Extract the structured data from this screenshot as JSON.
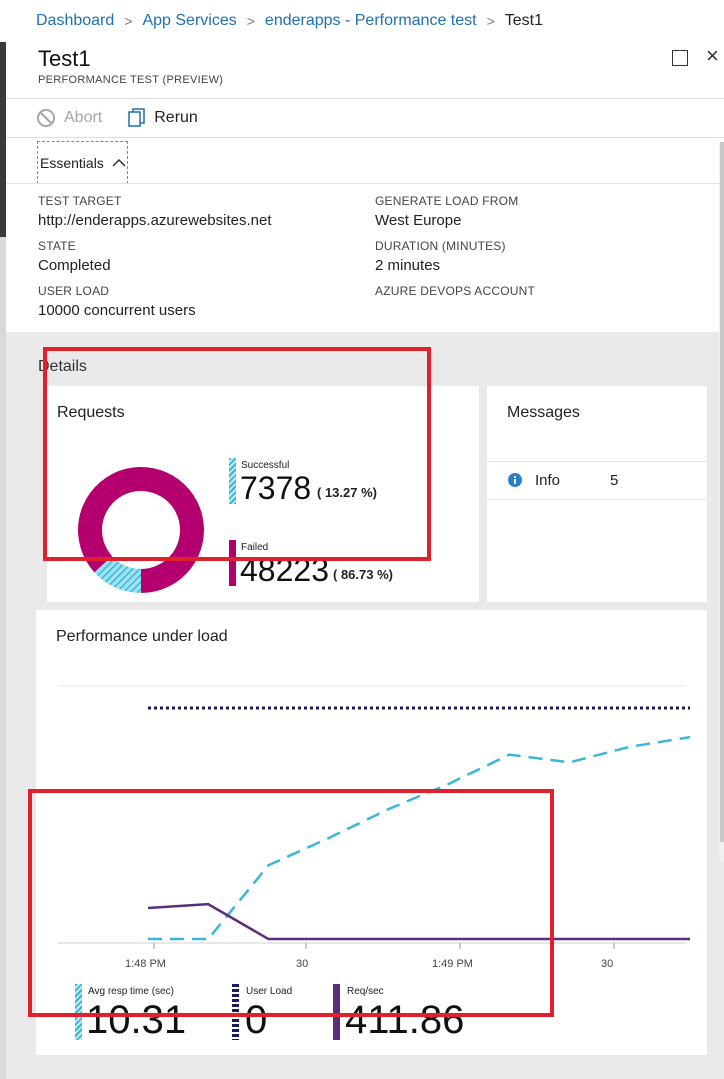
{
  "breadcrumb": {
    "items": [
      "Dashboard",
      "App Services",
      "enderapps - Performance test"
    ],
    "current": "Test1",
    "separator": ">"
  },
  "blade": {
    "title": "Test1",
    "subtitle": "PERFORMANCE TEST (PREVIEW)",
    "close_glyph": "×"
  },
  "toolbar": {
    "abort_label": "Abort",
    "rerun_label": "Rerun"
  },
  "essentials": {
    "toggle_label": "Essentials",
    "left": [
      {
        "label": "TEST TARGET",
        "value": "http://enderapps.azurewebsites.net"
      },
      {
        "label": "STATE",
        "value": "Completed"
      },
      {
        "label": "USER LOAD",
        "value": "10000 concurrent users"
      }
    ],
    "right": [
      {
        "label": "GENERATE LOAD FROM",
        "value": "West Europe"
      },
      {
        "label": "DURATION (MINUTES)",
        "value": "2 minutes"
      },
      {
        "label": "AZURE DEVOPS ACCOUNT",
        "value": ""
      }
    ]
  },
  "details": {
    "heading": "Details",
    "requests": {
      "title": "Requests",
      "successful": {
        "label": "Successful",
        "value": "7378",
        "pct": "( 13.27 %)",
        "fraction": 0.1327
      },
      "failed": {
        "label": "Failed",
        "value": "48223",
        "pct": "( 86.73 %)",
        "fraction": 0.8673
      }
    },
    "messages": {
      "title": "Messages",
      "rows": [
        {
          "icon": "info-icon",
          "label": "Info",
          "count": "5"
        }
      ]
    },
    "performance": {
      "title": "Performance under load",
      "x_ticks": [
        "1:48 PM",
        "30",
        "1:49 PM",
        "30"
      ],
      "kpis": [
        {
          "label": "Avg resp time (sec)",
          "value": "10.31"
        },
        {
          "label": "User Load",
          "value": "0"
        },
        {
          "label": "Req/sec",
          "value": "411.86"
        }
      ]
    }
  },
  "colors": {
    "link": "#1f6fb4",
    "successful": "#3ab6d8",
    "failed": "#b4006e",
    "user_load": "#1a1a5e",
    "req_sec": "#5c2d7a",
    "highlight": "#e0202a"
  },
  "chart_data": {
    "type": "line",
    "title": "Performance under load",
    "x": [
      "1:48 PM",
      "",
      "30",
      "",
      "",
      "1:49 PM",
      "",
      "",
      "30",
      ""
    ],
    "series": [
      {
        "name": "Avg resp time (sec)",
        "style": "dashed",
        "color": "#3ab6d8",
        "values": [
          0.01,
          0.01,
          0.39,
          0.53,
          0.68,
          0.81,
          0.96,
          0.92,
          1.0,
          1.05
        ]
      },
      {
        "name": "User Load",
        "style": "dotted",
        "color": "#1a1a5e",
        "values": [
          1.2,
          1.2,
          1.2,
          1.2,
          1.2,
          1.2,
          1.2,
          1.2,
          1.2,
          1.2
        ]
      },
      {
        "name": "Req/sec",
        "style": "solid",
        "color": "#5c2d7a",
        "values": [
          0.17,
          0.19,
          0.01,
          0.01,
          0.01,
          0.01,
          0.01,
          0.01,
          0.01,
          0.01
        ]
      }
    ],
    "grid": false,
    "legend": "bottom"
  }
}
